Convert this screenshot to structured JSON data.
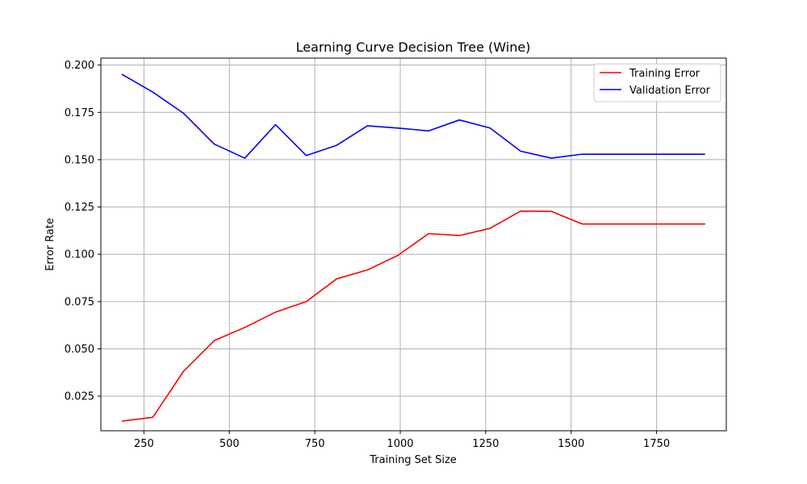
{
  "chart_data": {
    "type": "line",
    "title": "Learning Curve Decision Tree (Wine)",
    "xlabel": "Training Set Size",
    "ylabel": "Error Rate",
    "xlim": [
      124,
      1954
    ],
    "ylim": [
      0.0067,
      0.2037
    ],
    "xticks": [
      250,
      500,
      750,
      1000,
      1250,
      1500,
      1750
    ],
    "xtick_labels": [
      "250",
      "500",
      "750",
      "1000",
      "1250",
      "1500",
      "1750"
    ],
    "yticks": [
      0.025,
      0.05,
      0.075,
      0.1,
      0.125,
      0.15,
      0.175,
      0.2
    ],
    "ytick_labels": [
      "0.025",
      "0.050",
      "0.075",
      "0.100",
      "0.125",
      "0.150",
      "0.175",
      "0.200"
    ],
    "grid": true,
    "legend_position": "top-right",
    "x": [
      187,
      276,
      366,
      456,
      545,
      635,
      725,
      814,
      904,
      994,
      1083,
      1173,
      1263,
      1352,
      1442,
      1532,
      1621,
      1711,
      1801,
      1890
    ],
    "series": [
      {
        "name": "Training Error",
        "color": "#ff0000",
        "values": [
          0.0118,
          0.0138,
          0.0382,
          0.0544,
          0.0613,
          0.0694,
          0.075,
          0.087,
          0.0917,
          0.0995,
          0.1109,
          0.1099,
          0.1137,
          0.1228,
          0.1227,
          0.116,
          0.116,
          0.116,
          0.116,
          0.116
        ]
      },
      {
        "name": "Validation Error",
        "color": "#0000ff",
        "values": [
          0.195,
          0.1857,
          0.1745,
          0.1582,
          0.1508,
          0.1685,
          0.1522,
          0.1576,
          0.1679,
          0.1667,
          0.1652,
          0.171,
          0.1667,
          0.1545,
          0.1508,
          0.1529,
          0.1529,
          0.1529,
          0.1529,
          0.1529
        ]
      }
    ]
  }
}
